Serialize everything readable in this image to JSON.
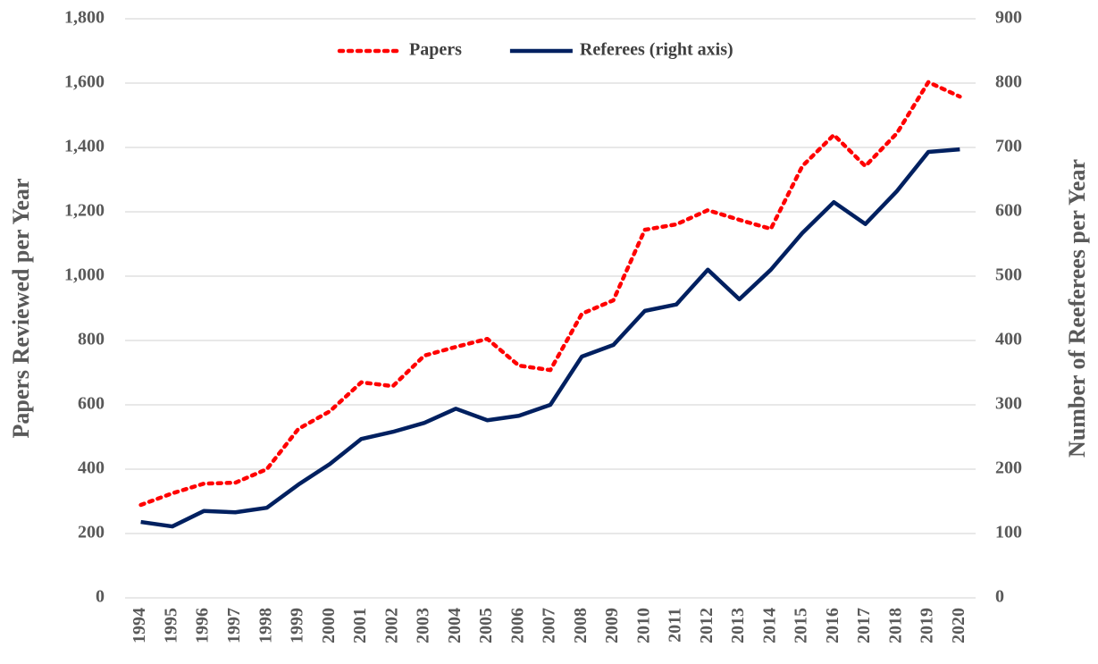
{
  "chart_data": {
    "type": "line",
    "y_label": "Papers Reviewed per Year",
    "y2_label": "Number of Reeferees per Year",
    "categories": [
      "1994",
      "1995",
      "1996",
      "1997",
      "1998",
      "1999",
      "2000",
      "2001",
      "2002",
      "2003",
      "2004",
      "2005",
      "2006",
      "2007",
      "2008",
      "2009",
      "2010",
      "2011",
      "2012",
      "2013",
      "2014",
      "2015",
      "2016",
      "2017",
      "2018",
      "2019",
      "2020"
    ],
    "series": [
      {
        "name": "Papers",
        "color": "#ff0000",
        "style": "dotted",
        "values": [
          289,
          325,
          355,
          358,
          400,
          525,
          580,
          670,
          658,
          753,
          780,
          805,
          722,
          708,
          883,
          925,
          1144,
          1161,
          1205,
          1175,
          1147,
          1342,
          1439,
          1342,
          1444,
          1603,
          1558
        ]
      },
      {
        "name": "Referees (right axis)",
        "color": "#002060",
        "style": "solid",
        "axis": "y2",
        "values": [
          118,
          111,
          135,
          133,
          140,
          176,
          208,
          247,
          258,
          272,
          294,
          276,
          283,
          300,
          375,
          393,
          446,
          456,
          510,
          464,
          510,
          567,
          615,
          581,
          632,
          693,
          697
        ]
      }
    ],
    "ylim": [
      0,
      1800
    ],
    "yticks": [
      0,
      200,
      400,
      600,
      800,
      {
        "value": 1000,
        "label": "1,000"
      },
      {
        "value": 1200,
        "label": "1,200"
      },
      {
        "value": 1400,
        "label": "1,400"
      },
      {
        "value": 1600,
        "label": "1,600"
      },
      {
        "value": 1800,
        "label": "1,800"
      }
    ],
    "y2lim": [
      0,
      900
    ],
    "y2ticks": [
      0,
      100,
      200,
      300,
      400,
      500,
      600,
      700,
      800,
      900
    ],
    "grid": true,
    "legend": "top"
  }
}
